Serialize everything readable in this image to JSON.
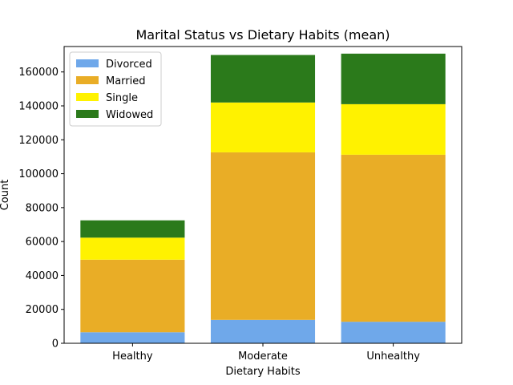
{
  "chart_data": {
    "type": "bar",
    "stacked": true,
    "title": "Marital Status vs Dietary Habits (mean)",
    "xlabel": "Dietary Habits",
    "ylabel": "Count",
    "categories": [
      "Healthy",
      "Moderate",
      "Unhealthy"
    ],
    "series": [
      {
        "name": "Divorced",
        "color": "#6fa8ea",
        "values": [
          6500,
          13800,
          12700
        ]
      },
      {
        "name": "Married",
        "color": "#e9ad26",
        "values": [
          42800,
          98800,
          98500
        ]
      },
      {
        "name": "Single",
        "color": "#fff200",
        "values": [
          13000,
          29400,
          29800
        ]
      },
      {
        "name": "Widowed",
        "color": "#2b7a1b",
        "values": [
          10200,
          28000,
          29800
        ]
      }
    ],
    "ylim": [
      0,
      175000
    ],
    "yticks": [
      0,
      20000,
      40000,
      60000,
      80000,
      100000,
      120000,
      140000,
      160000
    ],
    "grid": false,
    "legend_position": "top-left"
  }
}
